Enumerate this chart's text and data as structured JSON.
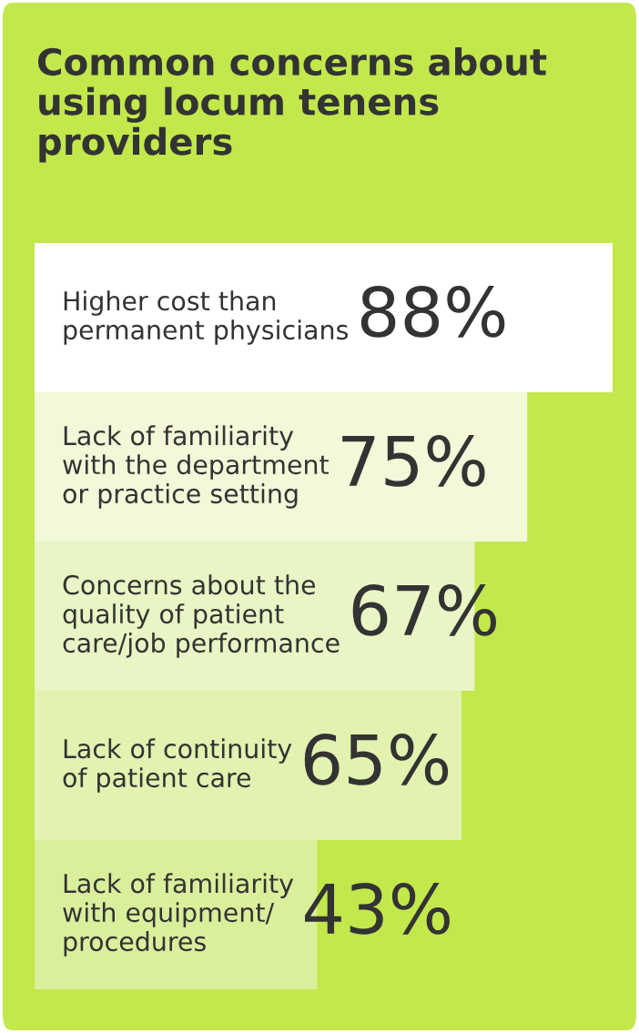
{
  "chart_data": {
    "type": "bar",
    "orientation": "horizontal",
    "title": "Common concerns about\nusing locum tenens\nproviders",
    "categories": [
      "Higher cost than\npermanent physicians",
      "Lack of familiarity\nwith the department\nor practice setting",
      "Concerns about the\nquality of patient\ncare/job performance",
      "Lack of continuity\nof patient care",
      "Lack of familiarity\nwith equipment/\nprocedures"
    ],
    "values": [
      88,
      75,
      67,
      65,
      43
    ],
    "value_labels": [
      "88%",
      "75%",
      "67%",
      "65%",
      "43%"
    ],
    "colors": [
      "#ffffff",
      "#f1f9d9",
      "#e9f5c4",
      "#e2f2b0",
      "#daef9c"
    ]
  }
}
